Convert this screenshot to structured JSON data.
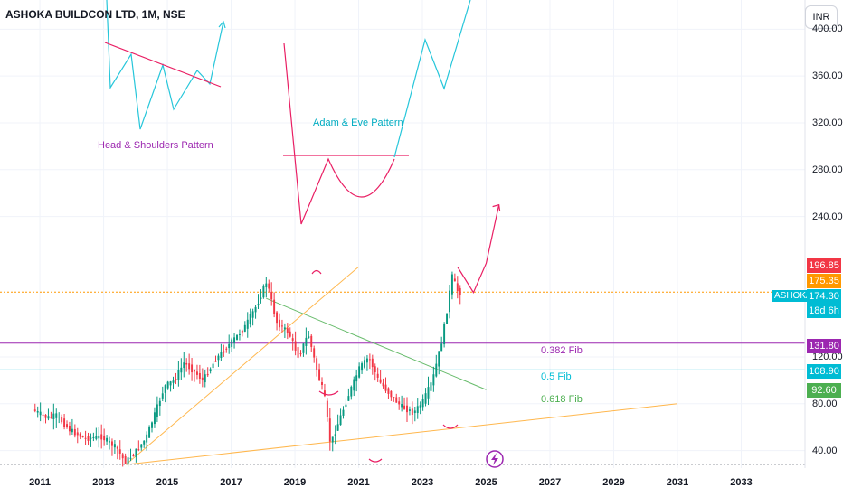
{
  "header": {
    "title": "ASHOKA BUILDCON LTD, 1M, NSE",
    "currency": "INR"
  },
  "annotations": {
    "head_shoulders": "Head & Shoulders Pattern",
    "adam_eve": "Adam & Eve Pattern",
    "fib_382": "0.382 Fib",
    "fib_5": "0.5 Fib",
    "fib_618": "0.618 Fib"
  },
  "price_labels": {
    "resistance": "196.85",
    "dotted": "175.35",
    "symbol": "ASHOKA",
    "current": "174.30",
    "countdown": "18d 6h",
    "fib_382": "131.80",
    "fib_5": "108.90",
    "fib_618": "92.60"
  },
  "colors": {
    "candle_up": "#089981",
    "candle_down": "#f23645",
    "resistance": "#f23645",
    "dotted": "#ff9800",
    "fib_382": "#9c27b0",
    "fib_5": "#00bcd4",
    "fib_618": "#4caf50",
    "trend_orange": "#ffb74d",
    "trend_green": "#66bb6a",
    "pattern_pink": "#e91e63",
    "pattern_cyan": "#26c6da",
    "pattern_purple": "#9c27b0",
    "symbol_bg": "#00bcd4"
  },
  "icons": {
    "lightning": "lightning-icon"
  },
  "chart_data": {
    "type": "candlestick",
    "interval": "1M",
    "symbol": "ASHOKA BUILDCON LTD",
    "exchange": "NSE",
    "x_ticks": [
      "2011",
      "2013",
      "2015",
      "2017",
      "2019",
      "2021",
      "2023",
      "2025",
      "2027",
      "2029",
      "2031",
      "2033"
    ],
    "y_ticks": [
      40,
      80,
      120,
      240,
      280,
      320,
      360,
      400
    ],
    "ylim": [
      25,
      425
    ],
    "xlim": [
      2009.75,
      2035.0
    ],
    "price_path": [
      [
        2010.85,
        75
      ],
      [
        2011.3,
        68
      ],
      [
        2011.6,
        70
      ],
      [
        2012.0,
        58
      ],
      [
        2012.5,
        50
      ],
      [
        2013.0,
        52
      ],
      [
        2013.5,
        42
      ],
      [
        2013.75,
        30
      ],
      [
        2014.0,
        36
      ],
      [
        2014.4,
        50
      ],
      [
        2014.7,
        72
      ],
      [
        2015.0,
        95
      ],
      [
        2015.3,
        100
      ],
      [
        2015.6,
        115
      ],
      [
        2015.9,
        108
      ],
      [
        2016.2,
        100
      ],
      [
        2016.6,
        118
      ],
      [
        2017.0,
        130
      ],
      [
        2017.5,
        145
      ],
      [
        2017.9,
        165
      ],
      [
        2018.2,
        185
      ],
      [
        2018.5,
        150
      ],
      [
        2018.9,
        140
      ],
      [
        2019.2,
        120
      ],
      [
        2019.5,
        140
      ],
      [
        2019.8,
        105
      ],
      [
        2020.0,
        88
      ],
      [
        2020.2,
        45
      ],
      [
        2020.5,
        68
      ],
      [
        2020.8,
        90
      ],
      [
        2021.1,
        110
      ],
      [
        2021.4,
        120
      ],
      [
        2021.7,
        100
      ],
      [
        2022.0,
        90
      ],
      [
        2022.4,
        78
      ],
      [
        2022.8,
        72
      ],
      [
        2023.1,
        82
      ],
      [
        2023.4,
        100
      ],
      [
        2023.7,
        135
      ],
      [
        2023.9,
        168
      ],
      [
        2024.0,
        190
      ],
      [
        2024.2,
        175.35
      ]
    ],
    "horizontal_levels": [
      {
        "label": "196.85",
        "value": 196.85
      },
      {
        "label": "175.35",
        "value": 175.35
      },
      {
        "label": "0.382 Fib",
        "value": 131.8
      },
      {
        "label": "0.5 Fib",
        "value": 108.9
      },
      {
        "label": "0.618 Fib",
        "value": 92.6
      }
    ],
    "trendlines": [
      {
        "name": "lower-support",
        "from": [
          2013.7,
          28
        ],
        "to": [
          2031.0,
          80
        ]
      },
      {
        "name": "rising-support",
        "from": [
          2013.7,
          28
        ],
        "to": [
          2021.0,
          197
        ]
      },
      {
        "name": "descending-resistance",
        "from": [
          2018.1,
          170
        ],
        "to": [
          2025.0,
          92
        ]
      }
    ],
    "projection": [
      [
        2024.1,
        197
      ],
      [
        2024.6,
        175
      ],
      [
        2025.0,
        200
      ],
      [
        2025.4,
        250
      ]
    ],
    "last_price": 174.3
  }
}
